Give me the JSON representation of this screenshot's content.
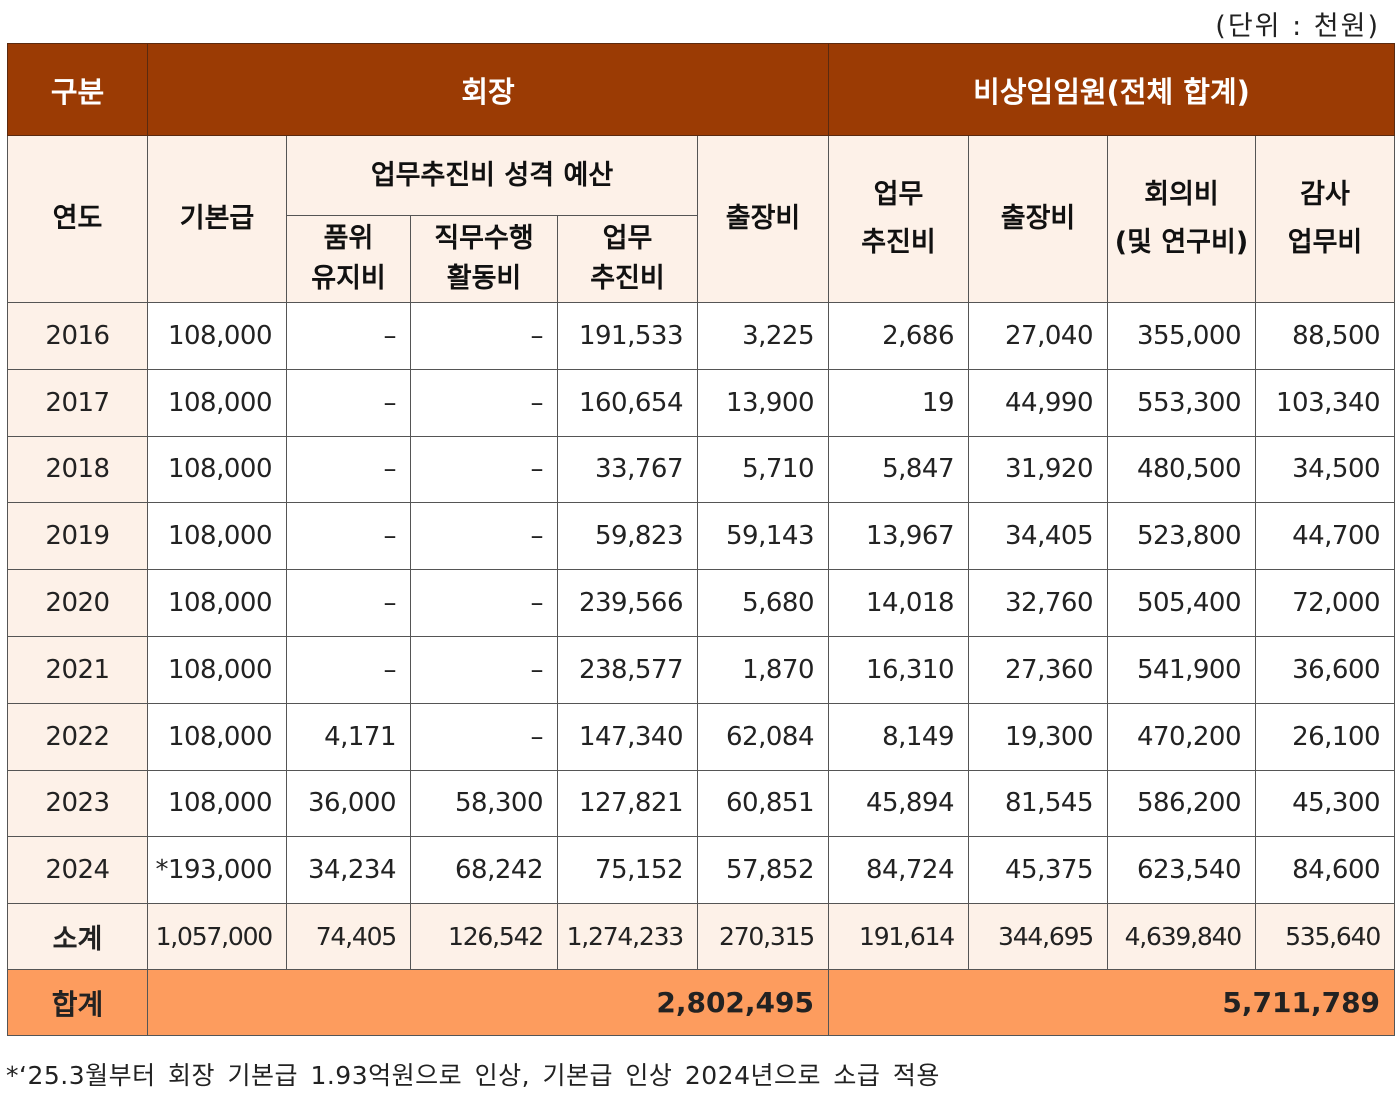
{
  "unit_label": "(단위 : 천원)",
  "header": {
    "category": "구분",
    "chairman": "회장",
    "non_standing": "비상임임원(전체 합계)",
    "year": "연도",
    "base_salary": "기본급",
    "budget_group": "업무추진비 성격 예산",
    "dignity": [
      "품위",
      "유지비"
    ],
    "duty_activity": [
      "직무수행",
      "활동비"
    ],
    "business": [
      "업무",
      "추진비"
    ],
    "travel": "출장비",
    "ns_business": [
      "업무",
      "추진비"
    ],
    "ns_travel": "출장비",
    "ns_meeting": [
      "회의비",
      "(및 연구비)"
    ],
    "ns_audit": [
      "감사",
      "업무비"
    ]
  },
  "rows": [
    {
      "year": "2016",
      "base": "108,000",
      "dignity": "–",
      "duty": "–",
      "business": "191,533",
      "travel": "3,225",
      "ns_business": "2,686",
      "ns_travel": "27,040",
      "ns_meeting": "355,000",
      "ns_audit": "88,500"
    },
    {
      "year": "2017",
      "base": "108,000",
      "dignity": "–",
      "duty": "–",
      "business": "160,654",
      "travel": "13,900",
      "ns_business": "19",
      "ns_travel": "44,990",
      "ns_meeting": "553,300",
      "ns_audit": "103,340"
    },
    {
      "year": "2018",
      "base": "108,000",
      "dignity": "–",
      "duty": "–",
      "business": "33,767",
      "travel": "5,710",
      "ns_business": "5,847",
      "ns_travel": "31,920",
      "ns_meeting": "480,500",
      "ns_audit": "34,500"
    },
    {
      "year": "2019",
      "base": "108,000",
      "dignity": "–",
      "duty": "–",
      "business": "59,823",
      "travel": "59,143",
      "ns_business": "13,967",
      "ns_travel": "34,405",
      "ns_meeting": "523,800",
      "ns_audit": "44,700"
    },
    {
      "year": "2020",
      "base": "108,000",
      "dignity": "–",
      "duty": "–",
      "business": "239,566",
      "travel": "5,680",
      "ns_business": "14,018",
      "ns_travel": "32,760",
      "ns_meeting": "505,400",
      "ns_audit": "72,000"
    },
    {
      "year": "2021",
      "base": "108,000",
      "dignity": "–",
      "duty": "–",
      "business": "238,577",
      "travel": "1,870",
      "ns_business": "16,310",
      "ns_travel": "27,360",
      "ns_meeting": "541,900",
      "ns_audit": "36,600"
    },
    {
      "year": "2022",
      "base": "108,000",
      "dignity": "4,171",
      "duty": "–",
      "business": "147,340",
      "travel": "62,084",
      "ns_business": "8,149",
      "ns_travel": "19,300",
      "ns_meeting": "470,200",
      "ns_audit": "26,100"
    },
    {
      "year": "2023",
      "base": "108,000",
      "dignity": "36,000",
      "duty": "58,300",
      "business": "127,821",
      "travel": "60,851",
      "ns_business": "45,894",
      "ns_travel": "81,545",
      "ns_meeting": "586,200",
      "ns_audit": "45,300"
    },
    {
      "year": "2024",
      "base": "*193,000",
      "dignity": "34,234",
      "duty": "68,242",
      "business": "75,152",
      "travel": "57,852",
      "ns_business": "84,724",
      "ns_travel": "45,375",
      "ns_meeting": "623,540",
      "ns_audit": "84,600"
    }
  ],
  "subtotal": {
    "label": "소계",
    "base": "1,057,000",
    "dignity": "74,405",
    "duty": "126,542",
    "business": "1,274,233",
    "travel": "270,315",
    "ns_business": "191,614",
    "ns_travel": "344,695",
    "ns_meeting": "4,639,840",
    "ns_audit": "535,640"
  },
  "total": {
    "label": "합계",
    "chairman": "2,802,495",
    "non_standing": "5,711,789"
  },
  "footnote": "*‘25.3월부터 회장 기본급 1.93억원으로 인상, 기본급 인상 2024년으로 소급 적용",
  "colors": {
    "header_bg": "#9b3b04",
    "light_bg": "#fdf1e8",
    "total_bg": "#fd9c5e"
  }
}
